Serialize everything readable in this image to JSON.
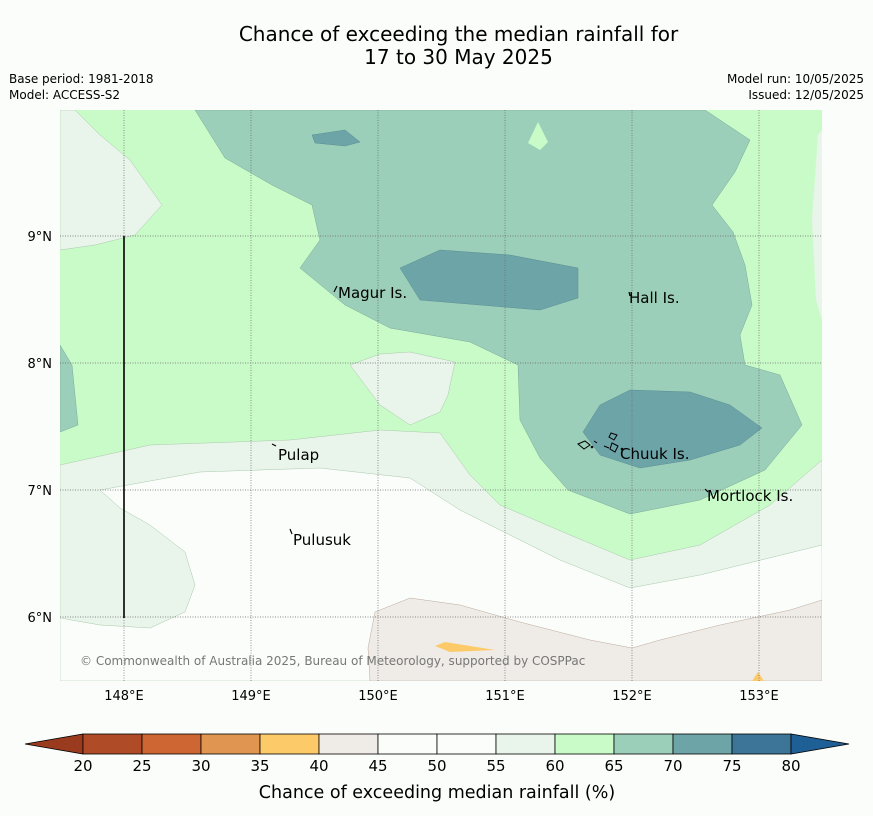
{
  "title": {
    "line1": "Chance of exceeding the median rainfall for",
    "line2": "17 to 30 May 2025"
  },
  "meta": {
    "base_period": "Base period: 1981-2018",
    "model": "Model: ACCESS-S2",
    "model_run": "Model run: 10/05/2025",
    "issued": "Issued: 12/05/2025"
  },
  "map": {
    "lat_labels": [
      "9°N",
      "8°N",
      "7°N",
      "6°N"
    ],
    "lon_labels": [
      "148°E",
      "149°E",
      "150°E",
      "151°E",
      "152°E",
      "153°E"
    ],
    "places": [
      {
        "name": "Magur Is."
      },
      {
        "name": "Hall Is."
      },
      {
        "name": "Pulap"
      },
      {
        "name": "Chuuk Is."
      },
      {
        "name": "Mortlock Is."
      },
      {
        "name": "Pulusuk"
      }
    ],
    "copyright": "© Commonwealth of Australia 2025, Bureau of Meteorology, supported by COSPPac"
  },
  "colorbar": {
    "label": "Chance of exceeding median rainfall (%)",
    "ticks": [
      "20",
      "25",
      "30",
      "35",
      "40",
      "45",
      "50",
      "55",
      "60",
      "65",
      "70",
      "75",
      "80"
    ],
    "colors": [
      "#b04b28",
      "#cd6633",
      "#e09650",
      "#fdca6a",
      "#efebe7",
      "#fbfdfb",
      "#fbfdfb",
      "#e9f4ea",
      "#c9fbc9",
      "#9ccfb9",
      "#6da4a8",
      "#3c7598"
    ],
    "under_color": "#9a3b1f",
    "over_color": "#1e5f96"
  }
}
